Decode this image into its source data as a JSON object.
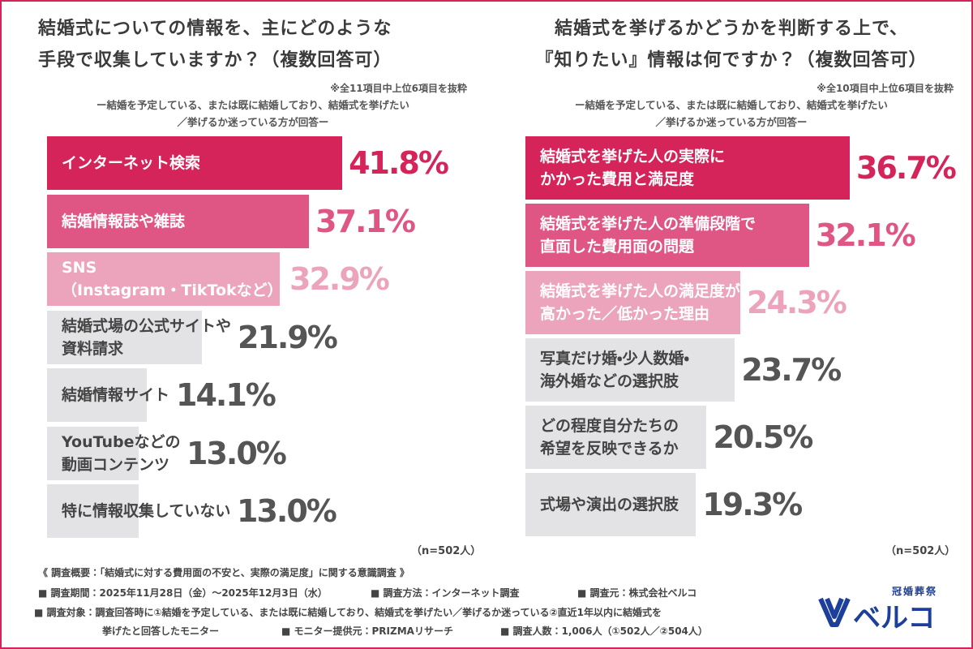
{
  "chart_data": [
    {
      "type": "bar",
      "orientation": "horizontal",
      "title": "結婚式についての情報を、主にどのような\n手段で収集していますか？（複数回答可）",
      "note": "※全11項目中上位6項目を抜粋",
      "subtitle": "ー結婚を予定している、または既に結婚しており、結婚式を挙げたい\n／挙げるか迷っている方が回答ー",
      "categories": [
        "インターネット検索",
        "結婚情報誌や雑誌",
        "SNS\n（Instagram・TikTokなど）",
        "結婚式場の公式サイトや\n資料請求",
        "結婚情報サイト",
        "YouTubeなどの\n動画コンテンツ",
        "特に情報収集していない"
      ],
      "values": [
        41.8,
        37.1,
        32.9,
        21.9,
        14.1,
        13.0,
        13.0
      ],
      "value_labels": [
        "41.8%",
        "37.1%",
        "32.9%",
        "21.9%",
        "14.1%",
        "13.0%",
        "13.0%"
      ],
      "colors": [
        "#d4245a",
        "#df5583",
        "#eca4bd",
        "#e3e3e6",
        "#e3e3e6",
        "#e3e3e6",
        "#e3e3e6"
      ],
      "text_colors": [
        "#ffffff",
        "#ffffff",
        "#ffffff",
        "#444444",
        "#444444",
        "#444444",
        "#444444"
      ],
      "value_label_colors": [
        "#d4245a",
        "#df5583",
        "#eca4bd",
        "#555555",
        "#555555",
        "#555555",
        "#555555"
      ],
      "sample": "（n=502人）"
    },
    {
      "type": "bar",
      "orientation": "horizontal",
      "title": "結婚式を挙げるかどうかを判断する上で、\n『知りたい』情報は何ですか？（複数回答可）",
      "note": "※全10項目中上位6項目を抜粋",
      "subtitle": "ー結婚を予定している、または既に結婚しており、結婚式を挙げたい\n／挙げるか迷っている方が回答ー",
      "categories": [
        "結婚式を挙げた人の実際に\nかかった費用と満足度",
        "結婚式を挙げた人の準備段階で\n直面した費用面の問題",
        "結婚式を挙げた人の満足度が\n高かった／低かった理由",
        "写真だけ婚・少人数婚・\n海外婚などの選択肢",
        "どの程度自分たちの\n希望を反映できるか",
        "式場や演出の選択肢"
      ],
      "values": [
        36.7,
        32.1,
        24.3,
        23.7,
        20.5,
        19.3
      ],
      "value_labels": [
        "36.7%",
        "32.1%",
        "24.3%",
        "23.7%",
        "20.5%",
        "19.3%"
      ],
      "colors": [
        "#d4245a",
        "#df5583",
        "#eca4bd",
        "#e3e3e6",
        "#e3e3e6",
        "#e3e3e6"
      ],
      "text_colors": [
        "#ffffff",
        "#ffffff",
        "#ffffff",
        "#444444",
        "#444444",
        "#444444"
      ],
      "value_label_colors": [
        "#d4245a",
        "#df5583",
        "#eca4bd",
        "#555555",
        "#555555",
        "#555555"
      ],
      "sample": "（n=502人）"
    }
  ],
  "footer": {
    "heading": "《 調査概要：「結婚式に対する費用面の不安と、実際の満足度」に関する意識調査 》",
    "period": "■ 調査期間：2025年11月28日（金）〜2025年12月3日（水）",
    "method": "■ 調査方法：インターネット調査",
    "source": "■ 調査元：株式会社ベルコ",
    "target": "■ 調査対象：調査回答時に①結婚を予定している、または既に結婚しており、結婚式を挙げたい／挙げるか迷っている②直近1年以内に結婚式を",
    "target_cont": "挙げたと回答したモニター",
    "provider": "■ モニター提供元：PRIZMAリサーチ",
    "count": "■ 調査人数：1,006人（①502人／②504人）"
  },
  "logo": {
    "tagline": "冠婚葬祭",
    "name": "ベルコ"
  }
}
